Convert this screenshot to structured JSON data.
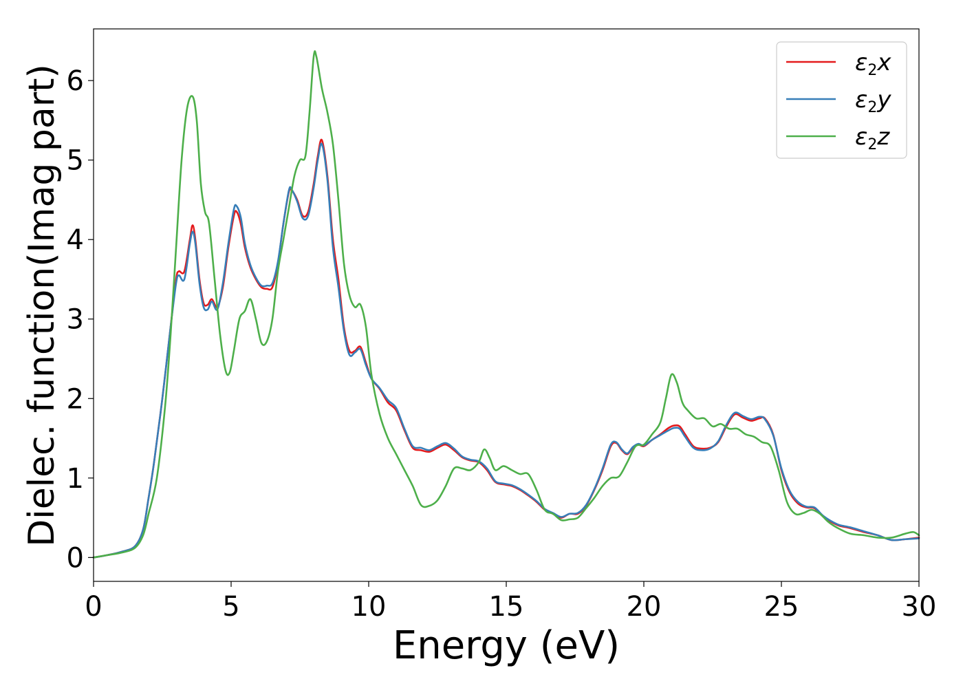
{
  "chart_data": {
    "type": "line",
    "xlabel": "Energy (eV)",
    "ylabel": "Dielec. function(Imag part)",
    "xlim": [
      0,
      30
    ],
    "ylim": [
      -0.3,
      6.65
    ],
    "xticks": [
      0,
      5,
      10,
      15,
      20,
      25,
      30
    ],
    "yticks": [
      0,
      1,
      2,
      3,
      4,
      5,
      6
    ],
    "grid": false,
    "legend_position": "top-right",
    "series": [
      {
        "name_base": "ε",
        "name_sub": "2",
        "name_suffix": "x",
        "color": "#e41a1c",
        "x": [
          0,
          0.5,
          1.0,
          1.5,
          1.8,
          2.0,
          2.2,
          2.5,
          2.8,
          3.0,
          3.1,
          3.3,
          3.5,
          3.6,
          3.7,
          3.85,
          4.0,
          4.15,
          4.3,
          4.5,
          4.7,
          4.9,
          5.1,
          5.2,
          5.35,
          5.5,
          5.7,
          5.9,
          6.1,
          6.3,
          6.5,
          6.7,
          6.9,
          7.1,
          7.2,
          7.4,
          7.6,
          7.8,
          8.0,
          8.15,
          8.3,
          8.5,
          8.7,
          8.9,
          9.1,
          9.3,
          9.5,
          9.7,
          9.9,
          10.1,
          10.4,
          10.7,
          11.0,
          11.3,
          11.6,
          11.9,
          12.2,
          12.5,
          12.8,
          13.1,
          13.4,
          13.7,
          14.0,
          14.3,
          14.6,
          14.9,
          15.2,
          15.5,
          15.8,
          16.1,
          16.4,
          16.7,
          17.0,
          17.3,
          17.6,
          17.9,
          18.2,
          18.5,
          18.8,
          19.0,
          19.2,
          19.4,
          19.6,
          19.8,
          20.0,
          20.3,
          20.6,
          20.9,
          21.1,
          21.3,
          21.5,
          21.8,
          22.1,
          22.4,
          22.7,
          23.0,
          23.3,
          23.6,
          23.9,
          24.2,
          24.4,
          24.7,
          25.0,
          25.3,
          25.6,
          25.9,
          26.2,
          26.5,
          26.8,
          27.1,
          27.5,
          28.0,
          28.5,
          29.0,
          29.5,
          30.0
        ],
        "y": [
          0,
          0.03,
          0.07,
          0.14,
          0.35,
          0.75,
          1.2,
          2.0,
          2.9,
          3.5,
          3.6,
          3.6,
          4.0,
          4.18,
          4.0,
          3.5,
          3.2,
          3.18,
          3.25,
          3.15,
          3.4,
          3.9,
          4.3,
          4.35,
          4.2,
          3.9,
          3.65,
          3.5,
          3.4,
          3.38,
          3.4,
          3.7,
          4.2,
          4.6,
          4.62,
          4.5,
          4.3,
          4.35,
          4.7,
          5.05,
          5.25,
          4.8,
          4.0,
          3.5,
          2.9,
          2.6,
          2.6,
          2.65,
          2.45,
          2.25,
          2.12,
          1.95,
          1.85,
          1.6,
          1.38,
          1.35,
          1.33,
          1.38,
          1.42,
          1.35,
          1.26,
          1.22,
          1.2,
          1.1,
          0.95,
          0.92,
          0.9,
          0.85,
          0.78,
          0.7,
          0.6,
          0.55,
          0.5,
          0.55,
          0.55,
          0.65,
          0.85,
          1.1,
          1.4,
          1.44,
          1.35,
          1.3,
          1.38,
          1.42,
          1.4,
          1.48,
          1.55,
          1.63,
          1.66,
          1.65,
          1.55,
          1.4,
          1.37,
          1.38,
          1.45,
          1.65,
          1.8,
          1.76,
          1.72,
          1.75,
          1.75,
          1.55,
          1.1,
          0.82,
          0.68,
          0.63,
          0.62,
          0.52,
          0.45,
          0.4,
          0.37,
          0.32,
          0.28,
          0.22,
          0.23,
          0.25
        ]
      },
      {
        "name_base": "ε",
        "name_sub": "2",
        "name_suffix": "y",
        "color": "#377eb8",
        "x": [
          0,
          0.5,
          1.0,
          1.5,
          1.8,
          2.0,
          2.2,
          2.5,
          2.8,
          3.0,
          3.1,
          3.3,
          3.5,
          3.6,
          3.7,
          3.85,
          4.0,
          4.15,
          4.3,
          4.5,
          4.7,
          4.9,
          5.1,
          5.2,
          5.35,
          5.5,
          5.7,
          5.9,
          6.1,
          6.3,
          6.5,
          6.7,
          6.9,
          7.1,
          7.2,
          7.4,
          7.6,
          7.8,
          8.0,
          8.15,
          8.3,
          8.5,
          8.7,
          8.9,
          9.1,
          9.3,
          9.5,
          9.7,
          9.9,
          10.1,
          10.4,
          10.7,
          11.0,
          11.3,
          11.6,
          11.9,
          12.2,
          12.5,
          12.8,
          13.1,
          13.4,
          13.7,
          14.0,
          14.3,
          14.6,
          14.9,
          15.2,
          15.5,
          15.8,
          16.1,
          16.4,
          16.7,
          17.0,
          17.3,
          17.6,
          17.9,
          18.2,
          18.5,
          18.8,
          19.0,
          19.2,
          19.4,
          19.6,
          19.8,
          20.0,
          20.3,
          20.6,
          20.9,
          21.1,
          21.3,
          21.5,
          21.8,
          22.1,
          22.4,
          22.7,
          23.0,
          23.3,
          23.6,
          23.9,
          24.2,
          24.4,
          24.7,
          25.0,
          25.3,
          25.6,
          25.9,
          26.2,
          26.5,
          26.8,
          27.1,
          27.5,
          28.0,
          28.5,
          29.0,
          29.5,
          30.0
        ],
        "y": [
          0,
          0.03,
          0.07,
          0.14,
          0.35,
          0.75,
          1.2,
          2.0,
          2.9,
          3.45,
          3.55,
          3.5,
          3.95,
          4.1,
          3.95,
          3.45,
          3.15,
          3.12,
          3.22,
          3.12,
          3.45,
          3.95,
          4.38,
          4.42,
          4.28,
          3.95,
          3.68,
          3.52,
          3.42,
          3.42,
          3.45,
          3.72,
          4.2,
          4.62,
          4.63,
          4.48,
          4.27,
          4.3,
          4.65,
          5.0,
          5.2,
          4.75,
          3.9,
          3.4,
          2.85,
          2.55,
          2.58,
          2.62,
          2.42,
          2.25,
          2.13,
          1.98,
          1.88,
          1.62,
          1.4,
          1.38,
          1.35,
          1.4,
          1.44,
          1.37,
          1.27,
          1.23,
          1.21,
          1.12,
          0.96,
          0.93,
          0.91,
          0.86,
          0.79,
          0.71,
          0.61,
          0.56,
          0.51,
          0.55,
          0.56,
          0.66,
          0.86,
          1.12,
          1.42,
          1.45,
          1.36,
          1.31,
          1.39,
          1.43,
          1.41,
          1.48,
          1.54,
          1.6,
          1.63,
          1.62,
          1.52,
          1.38,
          1.35,
          1.37,
          1.46,
          1.67,
          1.82,
          1.78,
          1.74,
          1.77,
          1.74,
          1.54,
          1.12,
          0.84,
          0.7,
          0.64,
          0.63,
          0.53,
          0.46,
          0.41,
          0.38,
          0.33,
          0.28,
          0.22,
          0.23,
          0.24
        ]
      },
      {
        "name_base": "ε",
        "name_sub": "2",
        "name_suffix": "z",
        "color": "#4daf4a",
        "x": [
          0,
          0.5,
          1.0,
          1.5,
          1.8,
          2.0,
          2.3,
          2.6,
          2.8,
          3.0,
          3.2,
          3.4,
          3.6,
          3.75,
          3.9,
          4.05,
          4.2,
          4.4,
          4.6,
          4.8,
          4.95,
          5.1,
          5.3,
          5.5,
          5.7,
          5.9,
          6.1,
          6.3,
          6.5,
          6.7,
          6.9,
          7.1,
          7.3,
          7.5,
          7.7,
          7.85,
          8.0,
          8.1,
          8.3,
          8.5,
          8.7,
          8.9,
          9.1,
          9.3,
          9.5,
          9.7,
          9.9,
          10.1,
          10.4,
          10.7,
          11.0,
          11.3,
          11.6,
          11.9,
          12.2,
          12.5,
          12.8,
          13.1,
          13.4,
          13.7,
          14.0,
          14.2,
          14.4,
          14.6,
          14.9,
          15.2,
          15.5,
          15.8,
          16.1,
          16.4,
          16.7,
          17.0,
          17.3,
          17.6,
          17.9,
          18.2,
          18.5,
          18.8,
          19.1,
          19.4,
          19.7,
          20.0,
          20.3,
          20.6,
          20.8,
          21.0,
          21.2,
          21.4,
          21.6,
          21.9,
          22.2,
          22.5,
          22.8,
          23.1,
          23.4,
          23.7,
          24.0,
          24.3,
          24.6,
          24.9,
          25.2,
          25.5,
          25.8,
          26.1,
          26.4,
          26.7,
          27.0,
          27.5,
          28.0,
          28.5,
          29.0,
          29.5,
          29.8,
          30.0
        ],
        "y": [
          0,
          0.03,
          0.06,
          0.12,
          0.28,
          0.55,
          1.0,
          1.9,
          2.8,
          3.9,
          5.0,
          5.65,
          5.8,
          5.5,
          4.7,
          4.35,
          4.2,
          3.5,
          2.8,
          2.35,
          2.33,
          2.6,
          3.0,
          3.1,
          3.25,
          3.0,
          2.7,
          2.72,
          3.0,
          3.6,
          4.0,
          4.4,
          4.8,
          5.0,
          5.05,
          5.6,
          6.3,
          6.3,
          5.9,
          5.6,
          5.2,
          4.5,
          3.7,
          3.3,
          3.15,
          3.18,
          2.9,
          2.3,
          1.8,
          1.5,
          1.3,
          1.1,
          0.9,
          0.66,
          0.65,
          0.72,
          0.9,
          1.12,
          1.12,
          1.1,
          1.2,
          1.36,
          1.25,
          1.1,
          1.15,
          1.1,
          1.05,
          1.05,
          0.85,
          0.6,
          0.55,
          0.47,
          0.48,
          0.5,
          0.62,
          0.75,
          0.9,
          1.0,
          1.02,
          1.2,
          1.4,
          1.42,
          1.55,
          1.7,
          2.0,
          2.3,
          2.2,
          1.95,
          1.85,
          1.75,
          1.75,
          1.65,
          1.68,
          1.62,
          1.62,
          1.55,
          1.52,
          1.45,
          1.4,
          1.1,
          0.7,
          0.55,
          0.56,
          0.6,
          0.55,
          0.45,
          0.38,
          0.3,
          0.28,
          0.25,
          0.25,
          0.3,
          0.32,
          0.28
        ]
      }
    ]
  }
}
